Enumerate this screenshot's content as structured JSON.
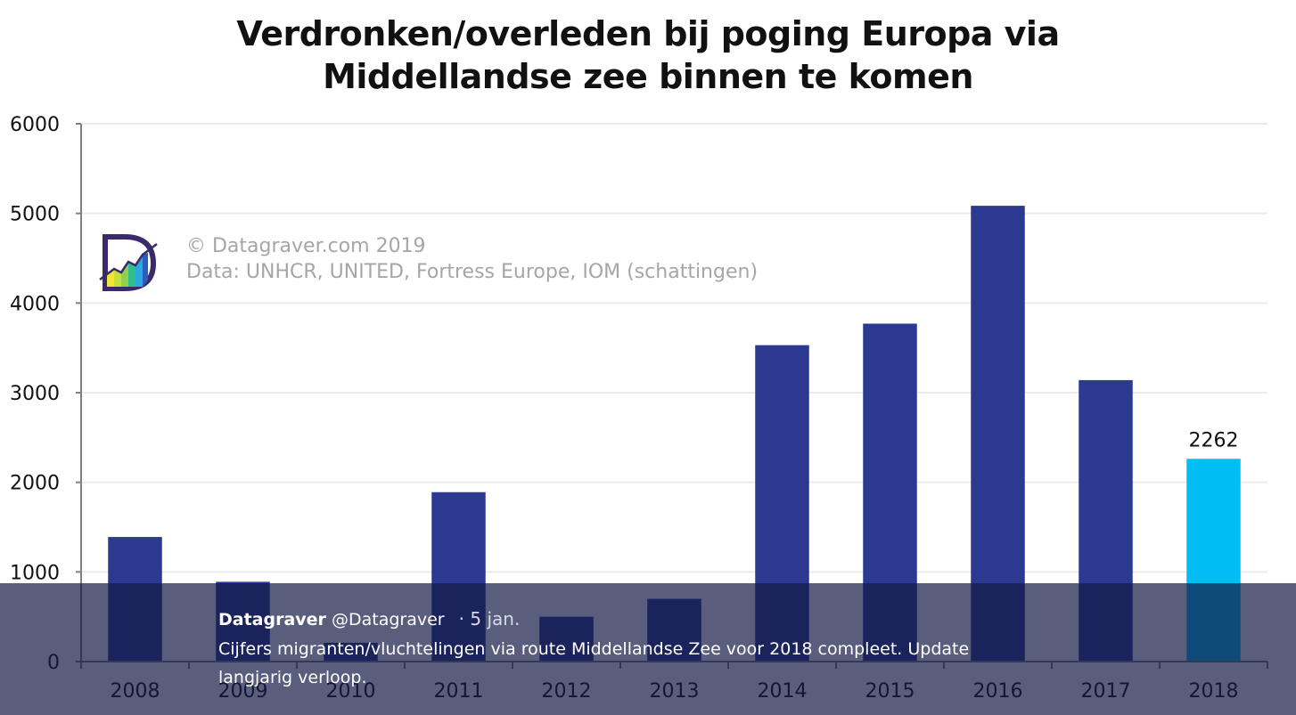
{
  "chart_data": {
    "type": "bar",
    "title": "Verdronken/overleden bij poging Europa via Middellandse zee binnen te komen",
    "title_lines": [
      "Verdronken/overleden bij poging Europa via",
      "Middellandse zee binnen te komen"
    ],
    "categories": [
      "2008",
      "2009",
      "2010",
      "2011",
      "2012",
      "2013",
      "2014",
      "2015",
      "2016",
      "2017",
      "2018"
    ],
    "values": [
      1390,
      890,
      210,
      1890,
      500,
      700,
      3530,
      3770,
      5085,
      3140,
      2262
    ],
    "highlight_index": 10,
    "data_labels": [
      {
        "category": "2018",
        "text": "2262"
      }
    ],
    "xlabel": "",
    "ylabel": "",
    "ylim": [
      0,
      6000
    ],
    "yticks": [
      "0",
      "1000",
      "2000",
      "3000",
      "4000",
      "5000",
      "6000"
    ],
    "grid": true,
    "legend": "none",
    "colors": {
      "bar": "#2c3990",
      "highlight": "#00bef2",
      "grid": "#ebebeb",
      "axis": "#808080"
    },
    "annotations": [
      "© Datagraver.com 2019",
      "Data: UNHCR, UNITED, Fortress Europe, IOM (schattingen)"
    ]
  },
  "watermark": {
    "line1": "© Datagraver.com 2019",
    "line2": "Data: UNHCR, UNITED, Fortress Europe, IOM (schattingen)",
    "logo_icon": "datagraver-logo-icon"
  },
  "tweet": {
    "author_name": "Datagraver",
    "author_handle": "@Datagraver",
    "separator": "·",
    "date": "5 jan.",
    "text_line1": "Cijfers migranten/vluchtelingen via route Middellandse Zee voor 2018 compleet. Update",
    "text_line2": "langjarig verloop."
  }
}
